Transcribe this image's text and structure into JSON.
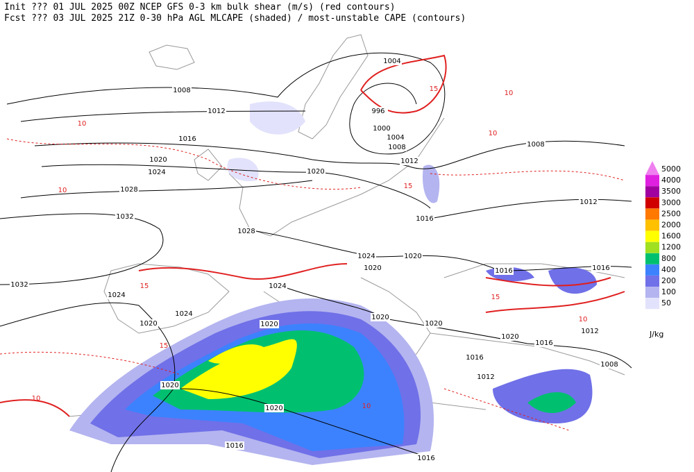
{
  "header": {
    "line1": "Init  ??? 01 JUL 2025 00Z  NCEP GFS 0-3 km bulk shear (m/s) (red contours)",
    "line2": "Fcst ??? 03 JUL 2025 21Z  0-30 hPa AGL MLCAPE (shaded) / most-unstable CAPE (contours)"
  },
  "legend": {
    "unit": "J/kg",
    "entries": [
      {
        "label": "5000",
        "color": "#f080f0"
      },
      {
        "label": "4000",
        "color": "#e020e0"
      },
      {
        "label": "3500",
        "color": "#a000a0"
      },
      {
        "label": "3000",
        "color": "#d00000"
      },
      {
        "label": "2500",
        "color": "#ff7800"
      },
      {
        "label": "2000",
        "color": "#ffc000"
      },
      {
        "label": "1600",
        "color": "#ffff00"
      },
      {
        "label": "1200",
        "color": "#a0e020"
      },
      {
        "label": "800",
        "color": "#00c070"
      },
      {
        "label": "400",
        "color": "#3c82ff"
      },
      {
        "label": "200",
        "color": "#7070e8"
      },
      {
        "label": "100",
        "color": "#b4b4f0"
      },
      {
        "label": "50",
        "color": "#e2e2fc"
      }
    ]
  },
  "isobar_labels": [
    "1004",
    "1008",
    "1012",
    "996",
    "1000",
    "1004",
    "1008",
    "1012",
    "1016",
    "1020",
    "1024",
    "1020",
    "1028",
    "1008",
    "1012",
    "1032",
    "1028",
    "1016",
    "1024",
    "1020",
    "1020",
    "1016",
    "1016",
    "1024",
    "1032",
    "1024",
    "1024",
    "1020",
    "1020",
    "1020",
    "1020",
    "1020",
    "1016",
    "1012",
    "1016",
    "1012",
    "1008",
    "1020",
    "1020",
    "1016",
    "1016"
  ],
  "shear_labels": [
    "15",
    "10",
    "15",
    "10",
    "15",
    "10",
    "10",
    "10",
    "15",
    "10",
    "10",
    "15"
  ]
}
